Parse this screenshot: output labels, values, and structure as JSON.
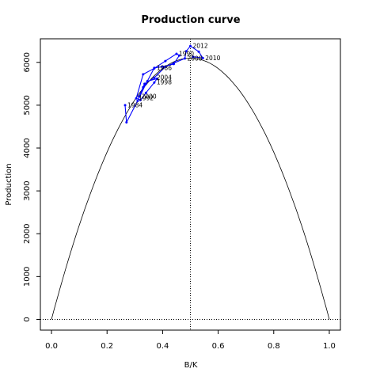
{
  "chart_data": {
    "type": "line",
    "title": "Production curve",
    "xlabel": "B/K",
    "ylabel": "Production",
    "xlim": [
      -0.04,
      1.04
    ],
    "ylim": [
      -250,
      6550
    ],
    "xticks": [
      "0.0",
      "0.2",
      "0.4",
      "0.6",
      "0.8",
      "1.0"
    ],
    "yticks": [
      "0",
      "1000",
      "2000",
      "3000",
      "4000",
      "5000",
      "6000"
    ],
    "grid": false,
    "legend": "none",
    "colors": {
      "curve": "#000000",
      "trajectory": "#0000ff",
      "reference": "#000000"
    },
    "curve": {
      "type": "parabola",
      "peak_x": 0.5,
      "peak_y": 6100,
      "x_range": [
        0,
        1
      ]
    },
    "reference_lines": {
      "vertical_x": 0.5,
      "horizontal_y": 0
    },
    "trajectory": {
      "name": "",
      "points": [
        {
          "x": 0.265,
          "y": 5000,
          "label": "1984"
        },
        {
          "x": 0.27,
          "y": 4600,
          "label": ""
        },
        {
          "x": 0.31,
          "y": 5100,
          "label": ""
        },
        {
          "x": 0.34,
          "y": 5500,
          "label": ""
        },
        {
          "x": 0.37,
          "y": 5870,
          "label": "1986"
        },
        {
          "x": 0.4,
          "y": 5900,
          "label": ""
        },
        {
          "x": 0.44,
          "y": 5960,
          "label": ""
        },
        {
          "x": 0.46,
          "y": 6160,
          "label": ""
        },
        {
          "x": 0.45,
          "y": 6200,
          "label": "1990"
        },
        {
          "x": 0.41,
          "y": 6030,
          "label": ""
        },
        {
          "x": 0.37,
          "y": 5860,
          "label": ""
        },
        {
          "x": 0.33,
          "y": 5720,
          "label": ""
        },
        {
          "x": 0.305,
          "y": 5160,
          "label": "1992"
        },
        {
          "x": 0.32,
          "y": 5120,
          "label": ""
        },
        {
          "x": 0.34,
          "y": 5290,
          "label": ""
        },
        {
          "x": 0.37,
          "y": 5530,
          "label": "1998"
        },
        {
          "x": 0.38,
          "y": 5620,
          "label": ""
        },
        {
          "x": 0.345,
          "y": 5560,
          "label": ""
        },
        {
          "x": 0.33,
          "y": 5420,
          "label": ""
        },
        {
          "x": 0.315,
          "y": 5200,
          "label": "2000"
        },
        {
          "x": 0.335,
          "y": 5500,
          "label": ""
        },
        {
          "x": 0.37,
          "y": 5640,
          "label": "2004"
        },
        {
          "x": 0.41,
          "y": 5900,
          "label": ""
        },
        {
          "x": 0.44,
          "y": 5980,
          "label": ""
        },
        {
          "x": 0.48,
          "y": 6090,
          "label": "2008"
        },
        {
          "x": 0.485,
          "y": 6260,
          "label": ""
        },
        {
          "x": 0.5,
          "y": 6380,
          "label": "2012"
        },
        {
          "x": 0.53,
          "y": 6250,
          "label": ""
        },
        {
          "x": 0.545,
          "y": 6100,
          "label": "2010"
        },
        {
          "x": 0.51,
          "y": 6130,
          "label": ""
        }
      ]
    }
  }
}
